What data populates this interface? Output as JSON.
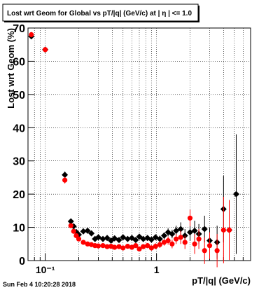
{
  "chart_data": {
    "type": "scatter",
    "title": "Lost wrt Geom for Global vs pT/|q| (GeV/c) at |  η | <= 1.0",
    "x_label": "pT/|q| (GeV/c)",
    "y_label": "Lost wrt Geom (%)",
    "footer": "Sun Feb  4 10:20:28 2018",
    "log_x": true,
    "grid": true,
    "xlim": [
      0.07,
      7
    ],
    "ylim": [
      0,
      70
    ],
    "xticks": [
      {
        "value": 0.1,
        "label": "10⁻¹"
      },
      1
    ],
    "xminorticks": [
      0.08,
      0.09,
      0.2,
      0.3,
      0.4,
      0.5,
      0.6,
      0.7,
      0.8,
      0.9,
      2,
      3,
      4,
      5,
      6
    ],
    "yticks": [
      0,
      10,
      20,
      30,
      40,
      50,
      60,
      70
    ],
    "x": [
      0.075,
      0.1,
      0.15,
      0.17,
      0.18,
      0.19,
      0.2,
      0.22,
      0.24,
      0.26,
      0.28,
      0.3,
      0.33,
      0.36,
      0.39,
      0.42,
      0.46,
      0.5,
      0.55,
      0.6,
      0.65,
      0.7,
      0.76,
      0.83,
      0.9,
      0.98,
      1.07,
      1.17,
      1.27,
      1.38,
      1.5,
      1.65,
      1.8,
      2.0,
      2.2,
      2.4,
      2.7,
      3.0,
      3.5,
      4.0,
      4.5,
      5.2
    ],
    "series": [
      {
        "color": "#000000",
        "marker": "diamond",
        "values": [
          67.5,
          63.5,
          25.8,
          11.8,
          10.3,
          8.6,
          7.8,
          8.8,
          9,
          8.2,
          6.5,
          7,
          6.5,
          6.8,
          6,
          6.7,
          6.2,
          7,
          6.5,
          6.8,
          6.2,
          7.2,
          6.5,
          6.8,
          6.3,
          7,
          6.5,
          7.5,
          8.5,
          8,
          9,
          9.5,
          7.5,
          8.5,
          9,
          8,
          9.5,
          6,
          5.5,
          15.5,
          9.2,
          20
        ],
        "errors": [
          0.8,
          0.8,
          1,
          0.6,
          0.6,
          0.5,
          0.5,
          0.5,
          0.5,
          0.5,
          0.5,
          0.5,
          0.5,
          0.5,
          0.5,
          0.5,
          0.5,
          0.5,
          0.6,
          0.6,
          0.6,
          0.7,
          0.7,
          0.8,
          0.8,
          0.9,
          1,
          1,
          1.2,
          1.3,
          1.5,
          2,
          2,
          2.5,
          3,
          3,
          4,
          4,
          5,
          10,
          9,
          18
        ]
      },
      {
        "color": "#ff0000",
        "marker": "circle",
        "values": [
          68,
          63.5,
          24.2,
          10.5,
          8.8,
          7.5,
          6.5,
          5.5,
          5,
          4.8,
          4.5,
          4.4,
          4.5,
          4.2,
          4.3,
          4,
          4.2,
          3.8,
          4.3,
          4,
          4.5,
          3.5,
          4.2,
          4.5,
          3.8,
          4.3,
          4.8,
          5.5,
          6,
          5,
          6.5,
          7,
          5.5,
          12.8,
          5,
          6.5,
          3,
          4.5,
          3,
          9.2,
          9.2,
          null
        ],
        "errors": [
          0.8,
          0.8,
          1,
          0.6,
          0.6,
          0.5,
          0.5,
          0.5,
          0.5,
          0.5,
          0.5,
          0.5,
          0.5,
          0.5,
          0.5,
          0.5,
          0.5,
          0.5,
          0.6,
          0.6,
          0.6,
          0.7,
          0.7,
          0.8,
          0.8,
          0.9,
          1,
          1,
          1.2,
          1.3,
          1.5,
          2,
          2,
          2.5,
          3,
          3,
          4,
          4,
          5,
          10,
          9,
          null
        ]
      }
    ]
  }
}
